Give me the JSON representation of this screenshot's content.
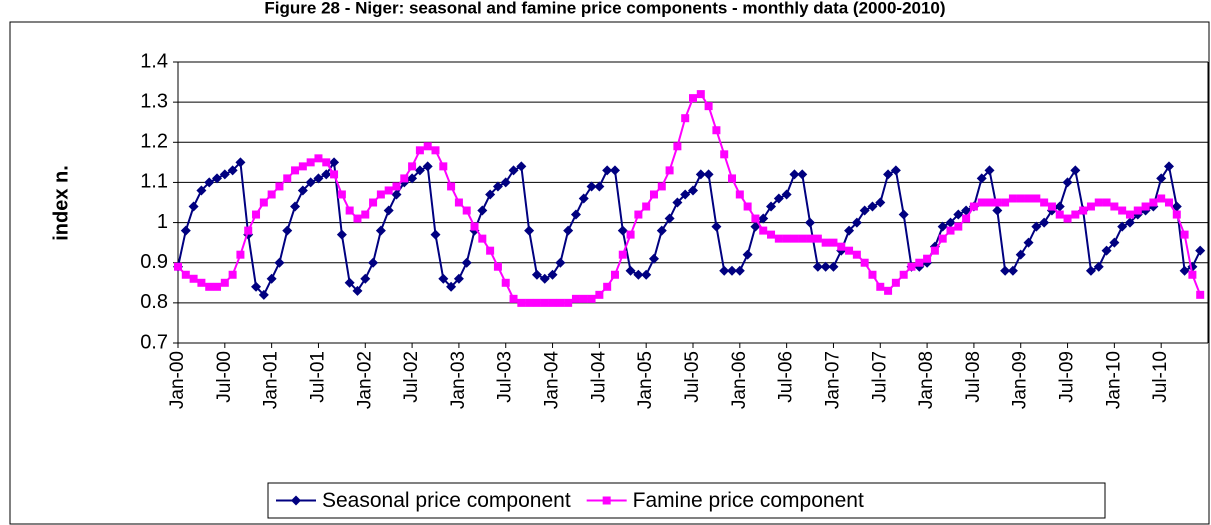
{
  "chart_data": {
    "type": "line",
    "title": "Figure 28 - Niger: seasonal and famine price components - monthly data (2000-2010)",
    "y_label": "index n.",
    "categories": [
      "Jan-00",
      null,
      null,
      null,
      null,
      null,
      "Jul-00",
      null,
      null,
      null,
      null,
      null,
      "Jan-01",
      null,
      null,
      null,
      null,
      null,
      "Jul-01",
      null,
      null,
      null,
      null,
      null,
      "Jan-02",
      null,
      null,
      null,
      null,
      null,
      "Jul-02",
      null,
      null,
      null,
      null,
      null,
      "Jan-03",
      null,
      null,
      null,
      null,
      null,
      "Jul-03",
      null,
      null,
      null,
      null,
      null,
      "Jan-04",
      null,
      null,
      null,
      null,
      null,
      "Jul-04",
      null,
      null,
      null,
      null,
      null,
      "Jan-05",
      null,
      null,
      null,
      null,
      null,
      "Jul-05",
      null,
      null,
      null,
      null,
      null,
      "Jan-06",
      null,
      null,
      null,
      null,
      null,
      "Jul-06",
      null,
      null,
      null,
      null,
      null,
      "Jan-07",
      null,
      null,
      null,
      null,
      null,
      "Jul-07",
      null,
      null,
      null,
      null,
      null,
      "Jan-08",
      null,
      null,
      null,
      null,
      null,
      "Jul-08",
      null,
      null,
      null,
      null,
      null,
      "Jan-09",
      null,
      null,
      null,
      null,
      null,
      "Jul-09",
      null,
      null,
      null,
      null,
      null,
      "Jan-10",
      null,
      null,
      null,
      null,
      null,
      "Jul-10",
      null,
      null,
      null,
      null,
      null
    ],
    "series": [
      {
        "name": "Seasonal price component",
        "color": "#000080",
        "marker": "diamond",
        "values": [
          0.89,
          0.98,
          1.04,
          1.08,
          1.1,
          1.11,
          1.12,
          1.13,
          1.15,
          0.97,
          0.84,
          0.82,
          0.86,
          0.9,
          0.98,
          1.04,
          1.08,
          1.1,
          1.11,
          1.12,
          1.15,
          0.97,
          0.85,
          0.83,
          0.86,
          0.9,
          0.98,
          1.03,
          1.07,
          1.1,
          1.11,
          1.13,
          1.14,
          0.97,
          0.86,
          0.84,
          0.86,
          0.9,
          0.98,
          1.03,
          1.07,
          1.09,
          1.1,
          1.13,
          1.14,
          0.98,
          0.87,
          0.86,
          0.87,
          0.9,
          0.98,
          1.02,
          1.06,
          1.09,
          1.09,
          1.13,
          1.13,
          0.98,
          0.88,
          0.87,
          0.87,
          0.91,
          0.98,
          1.01,
          1.05,
          1.07,
          1.08,
          1.12,
          1.12,
          0.99,
          0.88,
          0.88,
          0.88,
          0.92,
          0.99,
          1.01,
          1.04,
          1.06,
          1.07,
          1.12,
          1.12,
          1.0,
          0.89,
          0.89,
          0.89,
          0.93,
          0.98,
          1.0,
          1.03,
          1.04,
          1.05,
          1.12,
          1.13,
          1.02,
          0.89,
          0.89,
          0.9,
          0.94,
          0.99,
          1.0,
          1.02,
          1.03,
          1.04,
          1.11,
          1.13,
          1.03,
          0.88,
          0.88,
          0.92,
          0.95,
          0.99,
          1.0,
          1.03,
          1.04,
          1.1,
          1.13,
          1.03,
          0.88,
          0.89,
          0.93,
          0.95,
          0.99,
          1.0,
          1.02,
          1.03,
          1.04,
          1.11,
          1.14,
          1.04,
          0.88,
          0.89,
          0.93
        ]
      },
      {
        "name": "Famine price component",
        "color": "#ff00ff",
        "marker": "square",
        "values": [
          0.89,
          0.87,
          0.86,
          0.85,
          0.84,
          0.84,
          0.85,
          0.87,
          0.92,
          0.98,
          1.02,
          1.05,
          1.07,
          1.09,
          1.11,
          1.13,
          1.14,
          1.15,
          1.16,
          1.15,
          1.12,
          1.07,
          1.03,
          1.01,
          1.02,
          1.05,
          1.07,
          1.08,
          1.09,
          1.11,
          1.14,
          1.18,
          1.19,
          1.18,
          1.14,
          1.09,
          1.05,
          1.03,
          0.99,
          0.96,
          0.93,
          0.89,
          0.85,
          0.81,
          0.8,
          0.8,
          0.8,
          0.8,
          0.8,
          0.8,
          0.8,
          0.81,
          0.81,
          0.81,
          0.82,
          0.84,
          0.87,
          0.92,
          0.97,
          1.02,
          1.04,
          1.07,
          1.09,
          1.13,
          1.19,
          1.26,
          1.31,
          1.32,
          1.29,
          1.23,
          1.17,
          1.11,
          1.07,
          1.04,
          1.01,
          0.98,
          0.97,
          0.96,
          0.96,
          0.96,
          0.96,
          0.96,
          0.96,
          0.95,
          0.95,
          0.94,
          0.93,
          0.92,
          0.9,
          0.87,
          0.84,
          0.83,
          0.85,
          0.87,
          0.89,
          0.9,
          0.91,
          0.93,
          0.96,
          0.98,
          0.99,
          1.01,
          1.04,
          1.05,
          1.05,
          1.05,
          1.05,
          1.06,
          1.06,
          1.06,
          1.06,
          1.05,
          1.04,
          1.02,
          1.01,
          1.02,
          1.03,
          1.04,
          1.05,
          1.05,
          1.04,
          1.03,
          1.02,
          1.03,
          1.04,
          1.05,
          1.06,
          1.05,
          1.02,
          0.97,
          0.87,
          0.82
        ]
      }
    ],
    "ylim": [
      0.7,
      1.4
    ],
    "yticks": [
      0.7,
      0.8,
      0.9,
      1,
      1.1,
      1.2,
      1.3,
      1.4
    ],
    "grid": true,
    "legend": "bottom"
  }
}
